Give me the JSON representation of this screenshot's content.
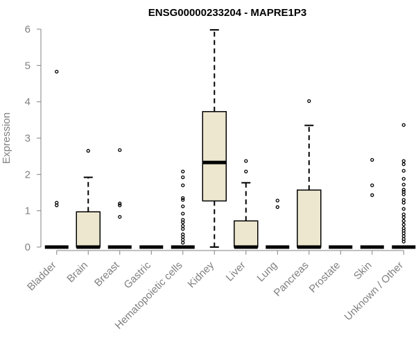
{
  "chart_data": {
    "type": "box",
    "title": "ENSG00000233204 - MAPRE1P3",
    "xlabel": "",
    "ylabel": "Expression",
    "ylim": [
      0,
      6
    ],
    "yticks": [
      0,
      1,
      2,
      3,
      4,
      5,
      6
    ],
    "grid": false,
    "legend": "none",
    "colors": {
      "box_fill": "#ede7cf",
      "stroke": "#000000",
      "axis": "#808080"
    },
    "categories": [
      "Bladder",
      "Brain",
      "Breast",
      "Gastric",
      "Hematopoietic cells",
      "Kidney",
      "Liver",
      "Lung",
      "Pancreas",
      "Prostate",
      "Skin",
      "Unknown / Other"
    ],
    "boxes": [
      {
        "category": "Bladder",
        "q1": 0,
        "median": 0,
        "q3": 0,
        "whisker_low": 0,
        "whisker_high": 0,
        "outliers": [
          4.83,
          1.22,
          1.15
        ]
      },
      {
        "category": "Brain",
        "q1": 0,
        "median": 0,
        "q3": 0.97,
        "whisker_low": 0,
        "whisker_high": 1.92,
        "outliers": [
          2.65
        ]
      },
      {
        "category": "Breast",
        "q1": 0,
        "median": 0,
        "q3": 0,
        "whisker_low": 0,
        "whisker_high": 0,
        "outliers": [
          2.67,
          1.2,
          1.15,
          0.83
        ]
      },
      {
        "category": "Gastric",
        "q1": 0,
        "median": 0,
        "q3": 0,
        "whisker_low": 0,
        "whisker_high": 0,
        "outliers": []
      },
      {
        "category": "Hematopoietic cells",
        "q1": 0,
        "median": 0,
        "q3": 0,
        "whisker_low": 0,
        "whisker_high": 0,
        "outliers": [
          2.08,
          1.92,
          1.7,
          1.35,
          1.3,
          1.12,
          0.92,
          0.75,
          0.68,
          0.58,
          0.5,
          0.35,
          0.28,
          0.2,
          0.12
        ]
      },
      {
        "category": "Kidney",
        "q1": 1.27,
        "median": 2.33,
        "q3": 3.73,
        "whisker_low": 0,
        "whisker_high": 5.98,
        "outliers": []
      },
      {
        "category": "Liver",
        "q1": 0,
        "median": 0,
        "q3": 0.72,
        "whisker_low": 0,
        "whisker_high": 1.77,
        "outliers": [
          2.37,
          2.08
        ]
      },
      {
        "category": "Lung",
        "q1": 0,
        "median": 0,
        "q3": 0,
        "whisker_low": 0,
        "whisker_high": 0,
        "outliers": [
          1.28,
          1.1
        ]
      },
      {
        "category": "Pancreas",
        "q1": 0,
        "median": 0,
        "q3": 1.57,
        "whisker_low": 0,
        "whisker_high": 3.35,
        "outliers": [
          4.02
        ]
      },
      {
        "category": "Prostate",
        "q1": 0,
        "median": 0,
        "q3": 0,
        "whisker_low": 0,
        "whisker_high": 0,
        "outliers": []
      },
      {
        "category": "Skin",
        "q1": 0,
        "median": 0,
        "q3": 0,
        "whisker_low": 0,
        "whisker_high": 0,
        "outliers": [
          2.4,
          1.7,
          1.43
        ]
      },
      {
        "category": "Unknown / Other",
        "q1": 0,
        "median": 0,
        "q3": 0,
        "whisker_low": 0,
        "whisker_high": 0,
        "outliers": [
          3.36,
          2.37,
          2.28,
          2.1,
          1.88,
          1.72,
          1.58,
          1.52,
          1.45,
          1.3,
          1.22,
          1.05,
          0.9,
          0.82,
          0.72,
          0.62,
          0.52,
          0.45,
          0.38,
          0.3,
          0.22,
          0.15
        ]
      }
    ]
  }
}
